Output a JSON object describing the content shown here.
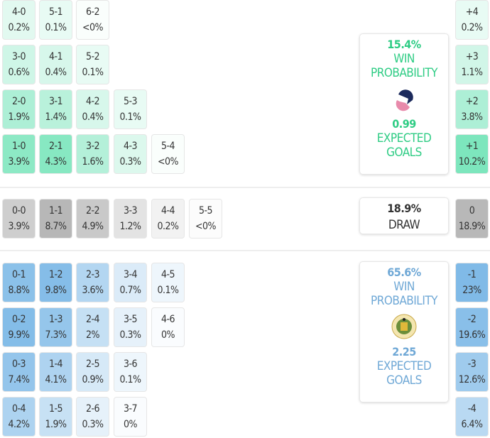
{
  "home": {
    "color": "#2ecc84",
    "cell_color": "#5fe0ae",
    "win_pct": "15.4%",
    "win_label": "WIN PROBABILITY",
    "xg": "0.99",
    "xg_label": "EXPECTED GOALS",
    "rows": [
      [
        [
          "4-0",
          "0.2%"
        ],
        [
          "5-1",
          "0.1%"
        ],
        [
          "6-2",
          "<0%"
        ]
      ],
      [
        [
          "3-0",
          "0.6%"
        ],
        [
          "4-1",
          "0.4%"
        ],
        [
          "5-2",
          "0.1%"
        ]
      ],
      [
        [
          "2-0",
          "1.9%"
        ],
        [
          "3-1",
          "1.4%"
        ],
        [
          "4-2",
          "0.4%"
        ],
        [
          "5-3",
          "0.1%"
        ]
      ],
      [
        [
          "1-0",
          "3.9%"
        ],
        [
          "2-1",
          "4.3%"
        ],
        [
          "3-2",
          "1.6%"
        ],
        [
          "4-3",
          "0.3%"
        ],
        [
          "5-4",
          "<0%"
        ]
      ]
    ],
    "margins": [
      [
        "+4",
        "0.2%"
      ],
      [
        "+3",
        "1.1%"
      ],
      [
        "+2",
        "3.8%"
      ],
      [
        "+1",
        "10.2%"
      ]
    ]
  },
  "draw": {
    "pct": "18.9%",
    "label": "DRAW",
    "cell_color": "#a8a8a8",
    "row": [
      [
        "0-0",
        "3.9%"
      ],
      [
        "1-1",
        "8.7%"
      ],
      [
        "2-2",
        "4.9%"
      ],
      [
        "3-3",
        "1.2%"
      ],
      [
        "4-4",
        "0.2%"
      ],
      [
        "5-5",
        "<0%"
      ]
    ],
    "margin": [
      "0",
      "18.9%"
    ]
  },
  "away": {
    "color": "#6fa8d6",
    "cell_color": "#5aa6e0",
    "win_pct": "65.6%",
    "win_label": "WIN PROBABILITY",
    "xg": "2.25",
    "xg_label": "EXPECTED GOALS",
    "rows": [
      [
        [
          "0-1",
          "8.8%"
        ],
        [
          "1-2",
          "9.8%"
        ],
        [
          "2-3",
          "3.6%"
        ],
        [
          "3-4",
          "0.7%"
        ],
        [
          "4-5",
          "0.1%"
        ]
      ],
      [
        [
          "0-2",
          "9.9%"
        ],
        [
          "1-3",
          "7.3%"
        ],
        [
          "2-4",
          "2%"
        ],
        [
          "3-5",
          "0.3%"
        ],
        [
          "4-6",
          "0%"
        ]
      ],
      [
        [
          "0-3",
          "7.4%"
        ],
        [
          "1-4",
          "4.1%"
        ],
        [
          "2-5",
          "0.9%"
        ],
        [
          "3-6",
          "0.1%"
        ]
      ],
      [
        [
          "0-4",
          "4.2%"
        ],
        [
          "1-5",
          "1.9%"
        ],
        [
          "2-6",
          "0.3%"
        ],
        [
          "3-7",
          "0%"
        ]
      ]
    ],
    "margins": [
      [
        "-1",
        "23%"
      ],
      [
        "-2",
        "19.6%"
      ],
      [
        "-3",
        "12.6%"
      ],
      [
        "-4",
        "6.4%"
      ]
    ]
  }
}
